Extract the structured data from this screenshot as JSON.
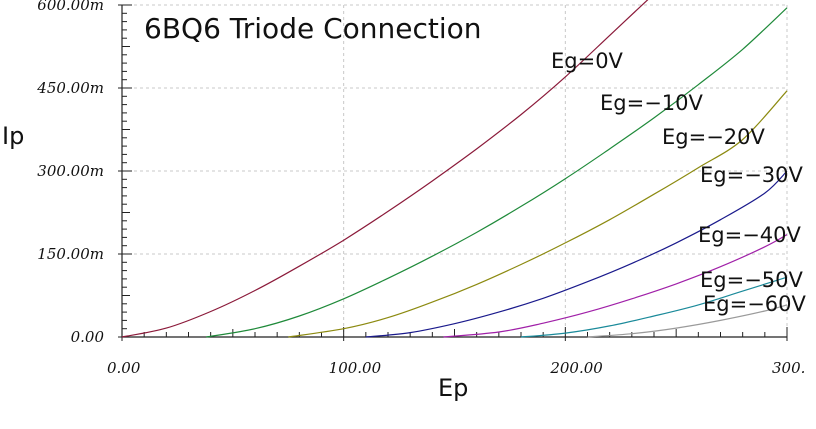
{
  "chart_data": {
    "type": "line",
    "title": "6BQ6 Triode Connection",
    "xlabel": "Ep",
    "ylabel": "Ip",
    "xlim": [
      0,
      300
    ],
    "ylim": [
      0,
      600
    ],
    "x_ticks": [
      {
        "value": 0,
        "label": "0.00"
      },
      {
        "value": 100,
        "label": "100.00"
      },
      {
        "value": 200,
        "label": "200.00"
      },
      {
        "value": 300,
        "label": "300."
      }
    ],
    "y_ticks": [
      {
        "value": 0,
        "label": "0.00"
      },
      {
        "value": 150,
        "label": "150.00m"
      },
      {
        "value": 300,
        "label": "300.00m"
      },
      {
        "value": 450,
        "label": "450.00m"
      },
      {
        "value": 600,
        "label": "600.00m"
      }
    ],
    "grid": true,
    "series": [
      {
        "name": "Eg=0V",
        "color": "#8b1a3a",
        "x": [
          0,
          20,
          40,
          60,
          80,
          100,
          120,
          140,
          160,
          180,
          200,
          220,
          240
        ],
        "y": [
          0,
          16,
          46,
          84,
          128,
          175,
          227,
          282,
          340,
          402,
          470,
          545,
          620
        ]
      },
      {
        "name": "Eg=−10V",
        "color": "#1f8a3a",
        "x": [
          38,
          60,
          80,
          100,
          120,
          140,
          160,
          180,
          200,
          220,
          240,
          260,
          280,
          300
        ],
        "y": [
          0,
          15,
          38,
          69,
          106,
          146,
          189,
          236,
          286,
          340,
          396,
          456,
          520,
          595
        ]
      },
      {
        "name": "Eg=−20V",
        "color": "#8c8a10",
        "x": [
          75,
          100,
          120,
          140,
          160,
          180,
          200,
          220,
          240,
          260,
          280,
          300
        ],
        "y": [
          0,
          15,
          35,
          63,
          95,
          131,
          170,
          212,
          258,
          306,
          357,
          445
        ]
      },
      {
        "name": "Eg=−30V",
        "color": "#1a1a8c",
        "x": [
          110,
          130,
          150,
          170,
          190,
          210,
          230,
          250,
          270,
          290,
          300
        ],
        "y": [
          0,
          8,
          24,
          45,
          70,
          100,
          133,
          170,
          212,
          260,
          300
        ]
      },
      {
        "name": "Eg=−40V",
        "color": "#a020a8",
        "x": [
          145,
          170,
          190,
          210,
          230,
          250,
          270,
          290,
          300
        ],
        "y": [
          0,
          9,
          25,
          45,
          69,
          96,
          127,
          163,
          185
        ]
      },
      {
        "name": "Eg=−50V",
        "color": "#1a8a9a",
        "x": [
          180,
          200,
          220,
          240,
          260,
          280,
          300
        ],
        "y": [
          0,
          7,
          20,
          38,
          58,
          83,
          108
        ]
      },
      {
        "name": "Eg=−60V",
        "color": "#9a9a9a",
        "x": [
          210,
          230,
          250,
          270,
          290,
          300
        ],
        "y": [
          0,
          6,
          16,
          30,
          47,
          58
        ]
      }
    ]
  }
}
